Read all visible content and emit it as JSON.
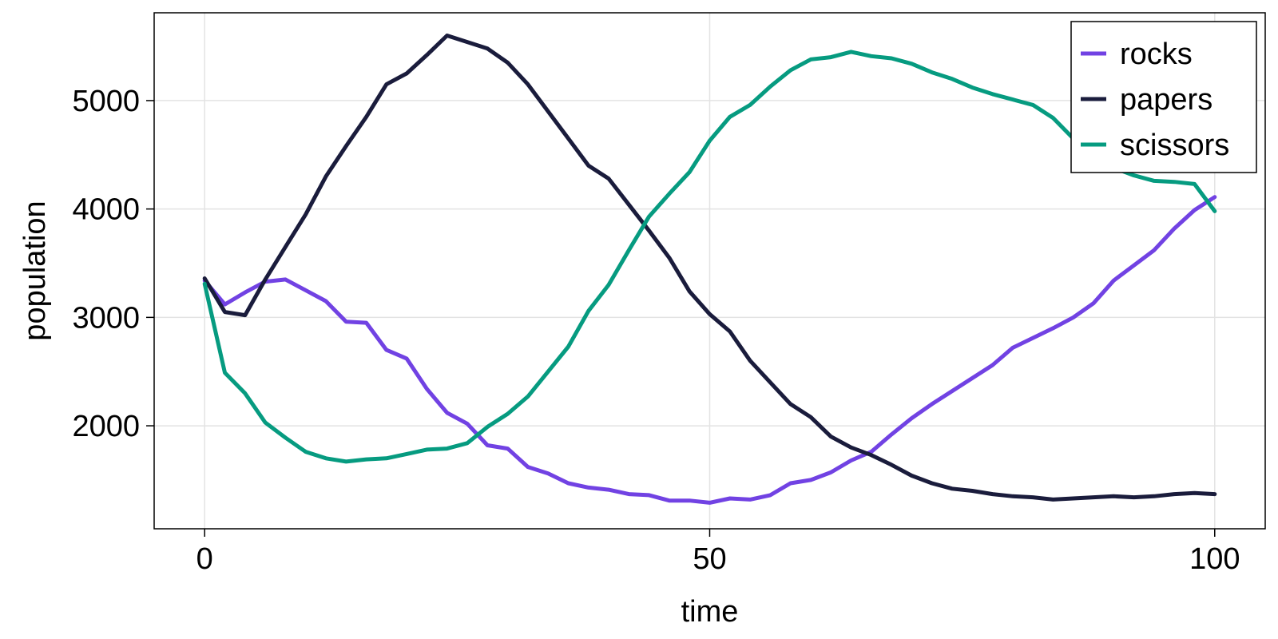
{
  "chart_data": {
    "type": "line",
    "xlabel": "time",
    "ylabel": "population",
    "xlim": [
      -5,
      105
    ],
    "ylim": [
      1050,
      5810
    ],
    "xticks": [
      0,
      50,
      100
    ],
    "yticks": [
      2000,
      3000,
      4000,
      5000
    ],
    "grid": true,
    "legend_position": "top-right",
    "x": [
      0,
      2,
      4,
      6,
      8,
      10,
      12,
      14,
      16,
      18,
      20,
      22,
      24,
      26,
      28,
      30,
      32,
      34,
      36,
      38,
      40,
      42,
      44,
      46,
      48,
      50,
      52,
      54,
      56,
      58,
      60,
      62,
      64,
      66,
      68,
      70,
      72,
      74,
      76,
      78,
      80,
      82,
      84,
      86,
      88,
      90,
      92,
      94,
      96,
      98,
      100
    ],
    "series": [
      {
        "name": "rocks",
        "color": "#7142e3",
        "values": [
          3340,
          3120,
          3230,
          3330,
          3350,
          3250,
          3150,
          2960,
          2950,
          2700,
          2620,
          2340,
          2120,
          2020,
          1820,
          1790,
          1620,
          1560,
          1470,
          1430,
          1410,
          1370,
          1360,
          1310,
          1310,
          1290,
          1330,
          1320,
          1360,
          1470,
          1500,
          1570,
          1680,
          1760,
          1920,
          2070,
          2200,
          2320,
          2440,
          2560,
          2720,
          2810,
          2900,
          3000,
          3130,
          3340,
          3480,
          3620,
          3820,
          3990,
          4110
        ]
      },
      {
        "name": "papers",
        "color": "#1a1c3c",
        "values": [
          3360,
          3050,
          3020,
          3350,
          3650,
          3950,
          4300,
          4580,
          4850,
          5150,
          5250,
          5420,
          5600,
          5540,
          5480,
          5350,
          5150,
          4900,
          4650,
          4400,
          4280,
          4040,
          3800,
          3550,
          3240,
          3030,
          2870,
          2600,
          2400,
          2200,
          2080,
          1900,
          1800,
          1730,
          1640,
          1540,
          1470,
          1420,
          1400,
          1370,
          1350,
          1340,
          1320,
          1330,
          1340,
          1350,
          1340,
          1350,
          1370,
          1380,
          1370
        ]
      },
      {
        "name": "scissors",
        "color": "#069b80",
        "values": [
          3310,
          2490,
          2300,
          2030,
          1890,
          1760,
          1700,
          1670,
          1690,
          1700,
          1740,
          1780,
          1790,
          1840,
          1990,
          2110,
          2270,
          2500,
          2730,
          3060,
          3300,
          3620,
          3930,
          4140,
          4340,
          4630,
          4850,
          4960,
          5130,
          5280,
          5380,
          5400,
          5450,
          5410,
          5390,
          5340,
          5260,
          5200,
          5120,
          5060,
          5010,
          4960,
          4840,
          4650,
          4500,
          4380,
          4310,
          4260,
          4250,
          4230,
          3980
        ]
      }
    ]
  }
}
